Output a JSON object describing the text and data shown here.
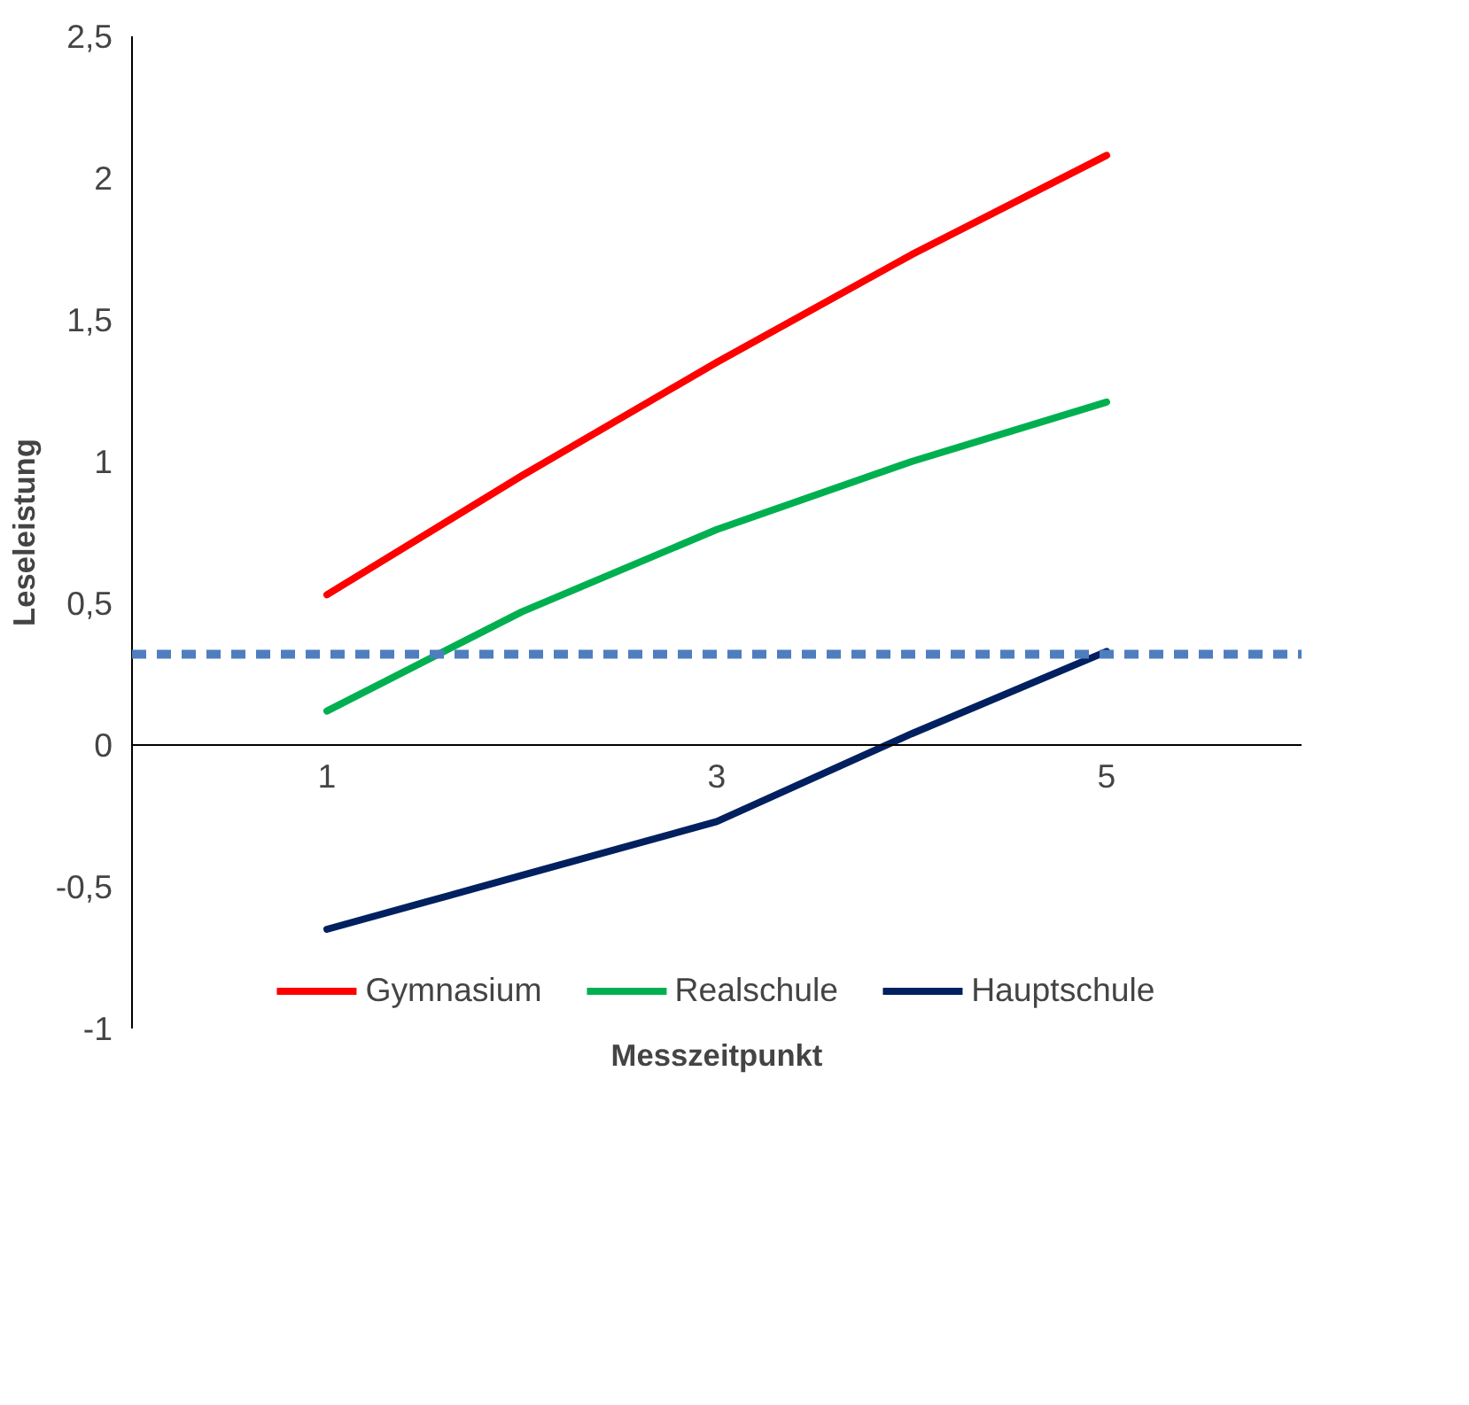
{
  "chart_data": {
    "type": "line",
    "xlabel": "Messzeitpunkt",
    "ylabel": "Leseleistung",
    "x": [
      1,
      2,
      3,
      4,
      5
    ],
    "series": [
      {
        "name": "Gymnasium",
        "color": "#ff0000",
        "values": [
          0.53,
          0.95,
          1.35,
          1.73,
          2.08
        ]
      },
      {
        "name": "Realschule",
        "color": "#00b050",
        "values": [
          0.12,
          0.47,
          0.76,
          1.0,
          1.21
        ]
      },
      {
        "name": "Hauptschule",
        "color": "#002060",
        "values": [
          -0.65,
          -0.46,
          -0.27,
          0.04,
          0.33
        ]
      }
    ],
    "xlim": [
      0,
      6
    ],
    "xticks": [
      1,
      3,
      5
    ],
    "ylim": [
      -1,
      2.5
    ],
    "yticks": [
      {
        "value": -1,
        "label": "-1"
      },
      {
        "value": -0.5,
        "label": "-0,5"
      },
      {
        "value": 0,
        "label": "0"
      },
      {
        "value": 0.5,
        "label": "0,5"
      },
      {
        "value": 1,
        "label": "1"
      },
      {
        "value": 1.5,
        "label": "1,5"
      },
      {
        "value": 2,
        "label": "2"
      },
      {
        "value": 2.5,
        "label": "2,5"
      }
    ],
    "ref_lines": [
      {
        "axis": "y",
        "value": 0.32,
        "color": "#4f7ebf",
        "line_style": "dashed"
      }
    ],
    "grid": false,
    "legend": "bottom",
    "marker": "none",
    "line_style": "solid"
  }
}
